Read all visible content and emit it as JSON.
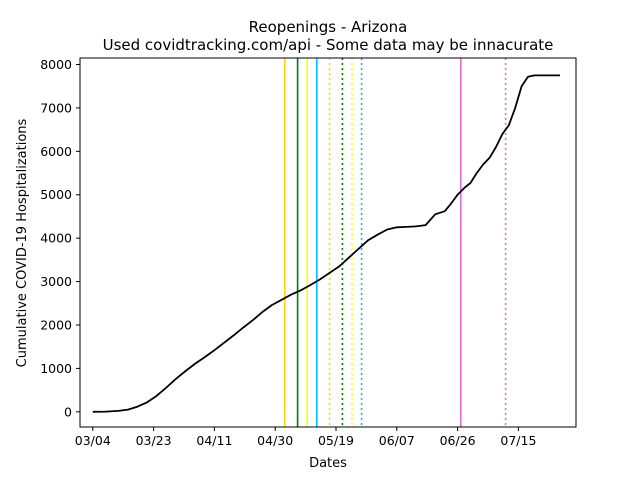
{
  "chart_data": {
    "type": "line",
    "title": "Reopenings - Arizona",
    "subtitle": "Used covidtracking.com/api - Some data may be innacurate",
    "xlabel": "Dates",
    "ylabel": "Cumulative COVID-19 Hospitalizations",
    "grid": false,
    "xlim": [
      "2020-02-29",
      "2020-08-02"
    ],
    "ylim": [
      -350,
      8150
    ],
    "x_ticks": [
      "03/04",
      "03/23",
      "04/11",
      "04/30",
      "05/19",
      "06/07",
      "06/26",
      "07/15"
    ],
    "x_tick_dates": [
      "2020-03-04",
      "2020-03-23",
      "2020-04-11",
      "2020-04-30",
      "2020-05-19",
      "2020-06-07",
      "2020-06-26",
      "2020-07-15"
    ],
    "y_ticks": [
      0,
      1000,
      2000,
      3000,
      4000,
      5000,
      6000,
      7000,
      8000
    ],
    "series": [
      {
        "color": "#000000",
        "x": [
          "2020-03-04",
          "2020-03-08",
          "2020-03-12",
          "2020-03-15",
          "2020-03-18",
          "2020-03-21",
          "2020-03-24",
          "2020-03-27",
          "2020-03-30",
          "2020-04-02",
          "2020-04-05",
          "2020-04-08",
          "2020-04-11",
          "2020-04-14",
          "2020-04-17",
          "2020-04-20",
          "2020-04-23",
          "2020-04-26",
          "2020-04-29",
          "2020-05-02",
          "2020-05-05",
          "2020-05-08",
          "2020-05-11",
          "2020-05-14",
          "2020-05-17",
          "2020-05-20",
          "2020-05-23",
          "2020-05-26",
          "2020-05-29",
          "2020-06-01",
          "2020-06-04",
          "2020-06-07",
          "2020-06-10",
          "2020-06-13",
          "2020-06-16",
          "2020-06-19",
          "2020-06-22",
          "2020-06-24",
          "2020-06-26",
          "2020-06-28",
          "2020-06-30",
          "2020-07-02",
          "2020-07-04",
          "2020-07-06",
          "2020-07-08",
          "2020-07-10",
          "2020-07-12",
          "2020-07-14",
          "2020-07-16",
          "2020-07-18",
          "2020-07-20",
          "2020-07-22",
          "2020-07-24",
          "2020-07-26",
          "2020-07-28"
        ],
        "values": [
          0,
          5,
          20,
          50,
          120,
          220,
          370,
          560,
          760,
          940,
          1110,
          1260,
          1420,
          1590,
          1760,
          1940,
          2110,
          2300,
          2460,
          2580,
          2700,
          2800,
          2920,
          3050,
          3200,
          3350,
          3550,
          3750,
          3950,
          4080,
          4200,
          4250,
          4260,
          4270,
          4300,
          4550,
          4620,
          4800,
          5000,
          5150,
          5270,
          5500,
          5700,
          5850,
          6100,
          6400,
          6600,
          7000,
          7500,
          7720,
          7750,
          7750,
          7750,
          7750,
          7750
        ]
      }
    ],
    "vlines": [
      {
        "date": "2020-05-03",
        "color": "#ffd700",
        "style": "solid"
      },
      {
        "date": "2020-05-07",
        "color": "#008000",
        "style": "solid"
      },
      {
        "date": "2020-05-10",
        "color": "#ffff00",
        "style": "solid"
      },
      {
        "date": "2020-05-13",
        "color": "#00bfff",
        "style": "solid"
      },
      {
        "date": "2020-05-17",
        "color": "#ffd700",
        "style": "dotted"
      },
      {
        "date": "2020-05-21",
        "color": "#008000",
        "style": "dotted"
      },
      {
        "date": "2020-05-24",
        "color": "#ffff00",
        "style": "dotted"
      },
      {
        "date": "2020-05-27",
        "color": "#00bfff",
        "style": "dotted"
      },
      {
        "date": "2020-06-27",
        "color": "#da70d6",
        "style": "solid"
      },
      {
        "date": "2020-07-11",
        "color": "#da70d6",
        "style": "dotted"
      }
    ]
  }
}
